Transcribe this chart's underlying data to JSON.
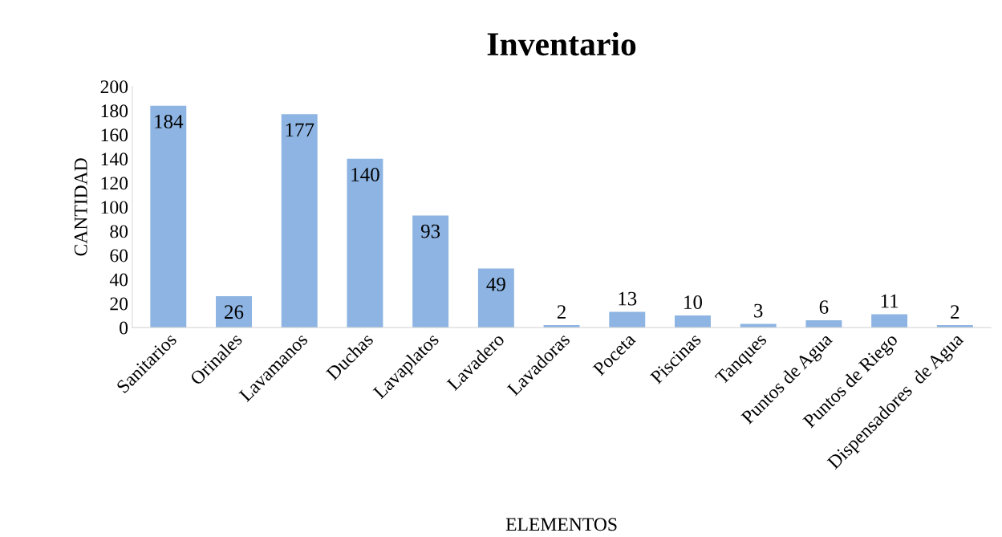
{
  "chart_data": {
    "type": "bar",
    "title": "Inventario",
    "xlabel": "ELEMENTOS",
    "ylabel": "CANTIDAD",
    "categories": [
      "Sanitarios",
      "Orinales",
      "Lavamanos",
      "Duchas",
      "Lavaplatos",
      "Lavadero",
      "Lavadoras",
      "Poceta",
      "Piscinas",
      "Tanques",
      "Puntos de Agua",
      "Puntos de Riego",
      "Dispensadores  de Agua"
    ],
    "values": [
      184,
      26,
      177,
      140,
      93,
      49,
      2,
      13,
      10,
      3,
      6,
      11,
      2
    ],
    "color": "#8db4e2",
    "ylim": [
      0,
      200
    ],
    "yticks": [
      0,
      20,
      40,
      60,
      80,
      100,
      120,
      140,
      160,
      180,
      200
    ],
    "data_labels": true,
    "grid": false,
    "legend": false
  }
}
